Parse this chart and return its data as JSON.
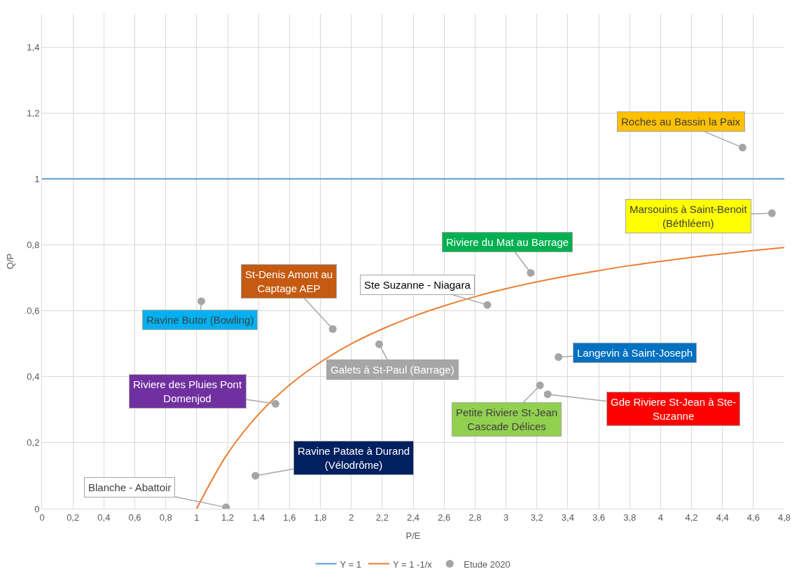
{
  "chart_data": {
    "type": "scatter",
    "xlabel": "P/E",
    "ylabel": "Q/P",
    "xlim": [
      0,
      4.8
    ],
    "ylim": [
      0,
      1.5
    ],
    "xticks": [
      0,
      {
        "value": 0.2,
        "label": "0,2"
      },
      {
        "value": 0.4,
        "label": "0,4"
      },
      {
        "value": 0.6,
        "label": "0,6"
      },
      {
        "value": 0.8,
        "label": "0,8"
      },
      1,
      {
        "value": 1.2,
        "label": "1,2"
      },
      {
        "value": 1.4,
        "label": "1,4"
      },
      {
        "value": 1.6,
        "label": "1,6"
      },
      {
        "value": 1.8,
        "label": "1,8"
      },
      2,
      {
        "value": 2.2,
        "label": "2,2"
      },
      {
        "value": 2.4,
        "label": "2,4"
      },
      {
        "value": 2.6,
        "label": "2,6"
      },
      {
        "value": 2.8,
        "label": "2,8"
      },
      3,
      {
        "value": 3.2,
        "label": "3,2"
      },
      {
        "value": 3.4,
        "label": "3,4"
      },
      {
        "value": 3.6,
        "label": "3,6"
      },
      {
        "value": 3.8,
        "label": "3,8"
      },
      4,
      {
        "value": 4.2,
        "label": "4,2"
      },
      {
        "value": 4.4,
        "label": "4,4"
      },
      {
        "value": 4.6,
        "label": "4,6"
      },
      {
        "value": 4.8,
        "label": "4,8"
      }
    ],
    "yticks": [
      0,
      {
        "value": 0.2,
        "label": "0,2"
      },
      {
        "value": 0.4,
        "label": "0,4"
      },
      {
        "value": 0.6,
        "label": "0,6"
      },
      {
        "value": 0.8,
        "label": "0,8"
      },
      1,
      {
        "value": 1.2,
        "label": "1,2"
      },
      {
        "value": 1.4,
        "label": "1,4"
      }
    ],
    "grid": true,
    "legend": "bottom",
    "series": [
      {
        "name": "Y = 1",
        "type": "line",
        "color": "#5b9bd5",
        "marker": "none",
        "x": [
          0,
          4.8
        ],
        "values": [
          1,
          1
        ]
      },
      {
        "name": "Y = 1 -1/x",
        "type": "line",
        "color": "#ed7d31",
        "marker": "none",
        "x": [
          1,
          1.2,
          1.4,
          1.6,
          1.8,
          2,
          2.2,
          2.4,
          2.6,
          2.8,
          3,
          3.2,
          3.4,
          3.6,
          3.8,
          4,
          4.2,
          4.4,
          4.6,
          4.8
        ],
        "values": [
          0,
          0.167,
          0.286,
          0.375,
          0.444,
          0.5,
          0.545,
          0.583,
          0.615,
          0.643,
          0.667,
          0.688,
          0.706,
          0.722,
          0.737,
          0.75,
          0.762,
          0.773,
          0.783,
          0.792
        ]
      },
      {
        "name": "Etude 2020",
        "color": "#a5a5a5",
        "marker": "circle",
        "x": [
          4.53,
          4.72,
          3.16,
          2.88,
          1.03,
          1.88,
          2.18,
          3.34,
          3.22,
          3.27,
          1.51,
          1.38,
          1.19
        ],
        "values": [
          1.095,
          0.896,
          0.715,
          0.618,
          0.629,
          0.545,
          0.499,
          0.46,
          0.374,
          0.347,
          0.318,
          0.1,
          0.004
        ]
      }
    ],
    "annotations": [
      {
        "text": "Roches au Bassin la Paix",
        "x": 4.53,
        "y": 1.095
      },
      {
        "text": "Marsouins à Saint-Benoit\n(Béthléem)",
        "x": 4.72,
        "y": 0.896
      },
      {
        "text": "Riviere du Mat au Barrage",
        "x": 3.16,
        "y": 0.715
      },
      {
        "text": "Ste Suzanne - Niagara",
        "x": 2.88,
        "y": 0.618
      },
      {
        "text": "Ravine Butor (Bowling)",
        "x": 1.03,
        "y": 0.629
      },
      {
        "text": "St-Denis Amont au\nCaptage AEP",
        "x": 1.88,
        "y": 0.545
      },
      {
        "text": "Galets à St-Paul (Barrage)",
        "x": 2.18,
        "y": 0.499
      },
      {
        "text": "Langevin à Saint-Joseph",
        "x": 3.34,
        "y": 0.46
      },
      {
        "text": "Petite Riviere St-Jean\nCascade Délices",
        "x": 3.22,
        "y": 0.374
      },
      {
        "text": "Gde Riviere St-Jean à Ste-\nSuzanne",
        "x": 3.27,
        "y": 0.347
      },
      {
        "text": "Riviere des Pluies Pont\nDomenjod",
        "x": 1.51,
        "y": 0.318
      },
      {
        "text": "Ravine Patate à Durand\n(Vélodrôme)",
        "x": 1.38,
        "y": 0.1
      },
      {
        "text": "Blanche - Abattoir",
        "x": 1.19,
        "y": 0.004
      }
    ]
  }
}
